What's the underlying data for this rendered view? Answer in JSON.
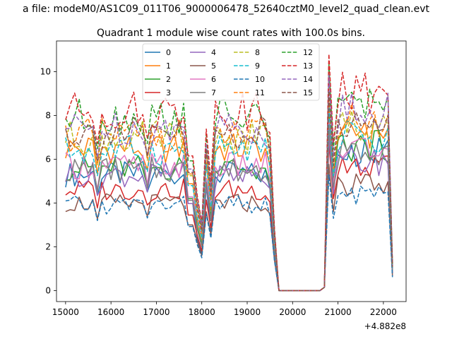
{
  "chart_data": {
    "type": "line",
    "suptitle": "a file: modeM0/AS1C09_011T06_9000006478_52640cztM0_level2_quad_clean.evt",
    "title": "Quadrant 1 module wise count rates with 100.0s bins.",
    "xlabel": "",
    "ylabel": "",
    "x_offset_label": "+4.882e8",
    "xlim": [
      14800,
      22500
    ],
    "ylim": [
      -0.5,
      11.4
    ],
    "xticks": [
      15000,
      16000,
      17000,
      18000,
      19000,
      20000,
      21000,
      22000
    ],
    "yticks": [
      0,
      2,
      4,
      6,
      8,
      10
    ],
    "legend_position": "upper-center",
    "x_start": 15000,
    "x_step": 100,
    "series": [
      {
        "name": "0",
        "color": "#1f77b4",
        "dash": false,
        "base": 5.3,
        "dip": 1.7,
        "post": 6.3
      },
      {
        "name": "1",
        "color": "#ff7f0e",
        "dash": false,
        "base": 6.5,
        "dip": 2.3,
        "post": 7.2
      },
      {
        "name": "2",
        "color": "#2ca02c",
        "dash": false,
        "base": 5.6,
        "dip": 2.1,
        "post": 6.6
      },
      {
        "name": "3",
        "color": "#d62728",
        "dash": false,
        "base": 4.6,
        "dip": 1.8,
        "post": 5.6
      },
      {
        "name": "4",
        "color": "#9467bd",
        "dash": false,
        "base": 5.3,
        "dip": 2.0,
        "post": 5.9
      },
      {
        "name": "5",
        "color": "#8c564b",
        "dash": false,
        "base": 4.0,
        "dip": 1.6,
        "post": 4.8
      },
      {
        "name": "6",
        "color": "#e377c2",
        "dash": false,
        "base": 5.7,
        "dip": 2.4,
        "post": 6.5
      },
      {
        "name": "7",
        "color": "#7f7f7f",
        "dash": false,
        "base": 5.5,
        "dip": 2.0,
        "post": 6.3
      },
      {
        "name": "8",
        "color": "#bcbd22",
        "dash": true,
        "base": 7.0,
        "dip": 2.8,
        "post": 7.6
      },
      {
        "name": "9",
        "color": "#17becf",
        "dash": true,
        "base": 6.4,
        "dip": 2.4,
        "post": 7.0
      },
      {
        "name": "10",
        "color": "#1f77b4",
        "dash": true,
        "base": 3.9,
        "dip": 1.5,
        "post": 4.4
      },
      {
        "name": "11",
        "color": "#ff7f0e",
        "dash": true,
        "base": 7.1,
        "dip": 2.6,
        "post": 7.8
      },
      {
        "name": "12",
        "color": "#2ca02c",
        "dash": true,
        "base": 7.9,
        "dip": 3.0,
        "post": 8.6
      },
      {
        "name": "13",
        "color": "#d62728",
        "dash": true,
        "base": 8.2,
        "dip": 3.1,
        "post": 9.0
      },
      {
        "name": "14",
        "color": "#9467bd",
        "dash": true,
        "base": 7.4,
        "dip": 2.9,
        "post": 8.2
      },
      {
        "name": "15",
        "color": "#8c564b",
        "dash": true,
        "base": 7.2,
        "dip": 2.7,
        "post": 7.6
      }
    ]
  }
}
